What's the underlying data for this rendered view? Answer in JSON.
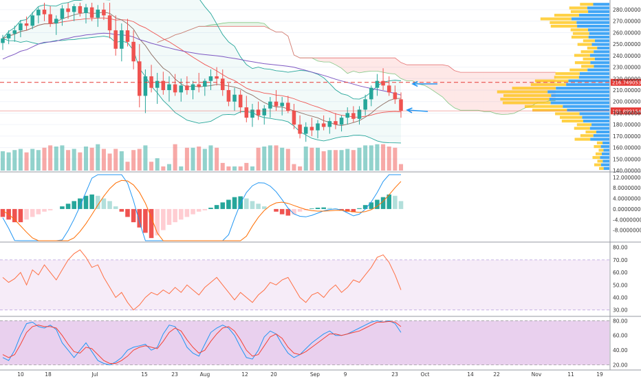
{
  "chart_data": [
    {
      "panel": "price",
      "type": "candlestick",
      "price_axis": {
        "ticks": [
          "280.00000000",
          "270.00000000",
          "260.00000000",
          "250.00000000",
          "240.00000000",
          "230.00000000",
          "220.00000000",
          "210.00000000",
          "200.00000000",
          "190.00000000",
          "180.00000000",
          "170.00000000",
          "160.00000000",
          "150.00000000",
          "140.00000000"
        ],
        "tick_values": [
          280,
          270,
          260,
          250,
          240,
          230,
          220,
          210,
          200,
          190,
          180,
          170,
          160,
          150,
          140
        ],
        "range": [
          140,
          286
        ]
      },
      "price_tags": [
        {
          "label": "216.74905314",
          "value": 216.75,
          "color": "#e53935"
        },
        {
          "label": "191.89915456",
          "value": 191.9,
          "color": "#e53935"
        }
      ],
      "candles": [
        [
          251,
          258,
          245,
          255
        ],
        [
          255,
          262,
          250,
          259
        ],
        [
          259,
          266,
          252,
          262
        ],
        [
          262,
          271,
          256,
          268
        ],
        [
          268,
          274,
          262,
          266
        ],
        [
          266,
          278,
          263,
          275
        ],
        [
          275,
          282,
          268,
          280
        ],
        [
          280,
          286,
          270,
          276
        ],
        [
          276,
          283,
          265,
          268
        ],
        [
          268,
          275,
          258,
          272
        ],
        [
          272,
          284,
          266,
          281
        ],
        [
          281,
          286,
          272,
          278
        ],
        [
          278,
          285,
          270,
          283
        ],
        [
          283,
          286,
          274,
          277
        ],
        [
          277,
          285,
          268,
          282
        ],
        [
          282,
          286,
          270,
          273
        ],
        [
          273,
          284,
          265,
          280
        ],
        [
          280,
          286,
          271,
          275
        ],
        [
          275,
          286,
          255,
          262
        ],
        [
          262,
          275,
          240,
          246
        ],
        [
          246,
          268,
          235,
          262
        ],
        [
          262,
          272,
          248,
          252
        ],
        [
          252,
          262,
          228,
          235
        ],
        [
          235,
          250,
          195,
          205
        ],
        [
          205,
          228,
          190,
          222
        ],
        [
          222,
          232,
          208,
          212
        ],
        [
          212,
          225,
          198,
          218
        ],
        [
          218,
          226,
          206,
          210
        ],
        [
          210,
          222,
          200,
          215
        ],
        [
          215,
          224,
          205,
          208
        ],
        [
          208,
          220,
          200,
          214
        ],
        [
          214,
          222,
          206,
          210
        ],
        [
          210,
          218,
          202,
          215
        ],
        [
          215,
          225,
          208,
          213
        ],
        [
          213,
          220,
          205,
          218
        ],
        [
          218,
          228,
          210,
          222
        ],
        [
          222,
          230,
          214,
          220
        ],
        [
          220,
          228,
          205,
          210
        ],
        [
          210,
          216,
          196,
          200
        ],
        [
          200,
          212,
          192,
          206
        ],
        [
          206,
          210,
          190,
          195
        ],
        [
          195,
          205,
          182,
          186
        ],
        [
          186,
          198,
          178,
          193
        ],
        [
          193,
          200,
          184,
          188
        ],
        [
          188,
          197,
          180,
          194
        ],
        [
          194,
          204,
          186,
          200
        ],
        [
          200,
          210,
          192,
          196
        ],
        [
          196,
          204,
          188,
          199
        ],
        [
          199,
          205,
          190,
          192
        ],
        [
          192,
          198,
          176,
          180
        ],
        [
          180,
          188,
          168,
          172
        ],
        [
          172,
          182,
          165,
          178
        ],
        [
          178,
          186,
          170,
          175
        ],
        [
          175,
          184,
          168,
          181
        ],
        [
          181,
          188,
          175,
          178
        ],
        [
          178,
          186,
          172,
          183
        ],
        [
          183,
          190,
          176,
          180
        ],
        [
          180,
          188,
          174,
          186
        ],
        [
          186,
          195,
          180,
          190
        ],
        [
          190,
          196,
          182,
          185
        ],
        [
          185,
          196,
          180,
          193
        ],
        [
          193,
          206,
          188,
          202
        ],
        [
          202,
          214,
          196,
          212
        ],
        [
          212,
          224,
          205,
          218
        ],
        [
          218,
          229,
          210,
          214
        ],
        [
          214,
          222,
          205,
          208
        ],
        [
          208,
          214,
          198,
          202
        ],
        [
          202,
          208,
          186,
          192
        ]
      ],
      "ichimoku_cloud": true,
      "bollinger_bands": true,
      "moving_average_lines": 3,
      "volume_profile": true,
      "volume_bars": true,
      "annotations": [
        "arrow",
        "arrow"
      ]
    },
    {
      "panel": "macd",
      "type": "histogram",
      "axis_ticks": [
        "12.00000000",
        "8.00000000",
        "4.00000000",
        "0.00000000",
        "-4.00000000",
        "-8.00000000"
      ],
      "tick_values": [
        12,
        8,
        4,
        0,
        -4,
        -8
      ],
      "range": [
        -12,
        13
      ],
      "histogram": [
        -3,
        -4,
        -5,
        -5,
        -4,
        -3,
        -2,
        -1,
        -0.5,
        0,
        1,
        2,
        3,
        4,
        5,
        5.5,
        5,
        4,
        3,
        1,
        -1,
        -3,
        -5,
        -7,
        -9,
        -11,
        -10,
        -8,
        -6,
        -5,
        -4,
        -3,
        -2,
        -1,
        -0.5,
        0.5,
        1.5,
        2.5,
        3.5,
        4.5,
        4.8,
        4,
        3,
        2,
        1,
        0,
        -1,
        -2,
        -2.5,
        -2,
        -1,
        -0.5,
        0.2,
        0.5,
        0.6,
        0.4,
        0.2,
        -0.4,
        -1,
        -1.2,
        0.3,
        1.5,
        2.5,
        3.5,
        4.5,
        5.5,
        5,
        3
      ]
    },
    {
      "panel": "rsi",
      "type": "line",
      "axis_ticks": [
        "80.00",
        "70.00",
        "60.00",
        "50.00",
        "40.00",
        "30.00"
      ],
      "tick_values": [
        80,
        70,
        60,
        50,
        40,
        30
      ],
      "range": [
        26,
        82
      ],
      "band": [
        30,
        70
      ],
      "values": [
        56,
        52,
        55,
        60,
        50,
        62,
        58,
        66,
        60,
        54,
        62,
        70,
        75,
        78,
        72,
        64,
        66,
        56,
        48,
        40,
        44,
        36,
        30,
        34,
        40,
        44,
        42,
        46,
        43,
        48,
        44,
        50,
        46,
        42,
        48,
        52,
        56,
        50,
        44,
        38,
        44,
        40,
        36,
        42,
        46,
        52,
        50,
        54,
        56,
        48,
        40,
        36,
        42,
        44,
        40,
        46,
        50,
        44,
        48,
        54,
        52,
        58,
        64,
        72,
        74,
        68,
        58,
        46
      ]
    },
    {
      "panel": "stochastic",
      "type": "line",
      "axis_ticks": [
        "80.00",
        "60.00",
        "40.00",
        "20.00"
      ],
      "tick_values": [
        80,
        60,
        40,
        20
      ],
      "range": [
        15,
        84
      ],
      "band": [
        20,
        80
      ],
      "series": [
        {
          "color": "#2196f3",
          "values": [
            30,
            26,
            40,
            60,
            76,
            78,
            72,
            70,
            74,
            68,
            50,
            40,
            30,
            40,
            50,
            38,
            26,
            22,
            20,
            24,
            30,
            40,
            44,
            46,
            48,
            40,
            44,
            62,
            74,
            72,
            60,
            44,
            36,
            32,
            48,
            64,
            70,
            74,
            70,
            60,
            44,
            30,
            28,
            40,
            58,
            66,
            62,
            48,
            36,
            30,
            34,
            42,
            50,
            56,
            62,
            66,
            60,
            60,
            62,
            66,
            70,
            74,
            78,
            80,
            78,
            80,
            76,
            64
          ]
        },
        {
          "color": "#f44336",
          "values": [
            34,
            30,
            34,
            48,
            64,
            72,
            74,
            72,
            72,
            70,
            60,
            48,
            38,
            36,
            44,
            42,
            34,
            26,
            22,
            22,
            26,
            32,
            40,
            44,
            46,
            44,
            42,
            52,
            64,
            70,
            66,
            54,
            44,
            36,
            40,
            52,
            62,
            70,
            72,
            66,
            54,
            40,
            32,
            34,
            46,
            58,
            62,
            56,
            44,
            36,
            34,
            38,
            44,
            50,
            56,
            62,
            62,
            60,
            62,
            64,
            66,
            70,
            74,
            78,
            78,
            79,
            78,
            72
          ]
        }
      ]
    }
  ],
  "date_axis": {
    "labels": [
      "10",
      "18",
      "Jul",
      "15",
      "23",
      "Aug",
      "12",
      "20",
      "Sep",
      "9",
      "23",
      "Oct",
      "14",
      "22",
      "Nov",
      "11",
      "19"
    ]
  }
}
